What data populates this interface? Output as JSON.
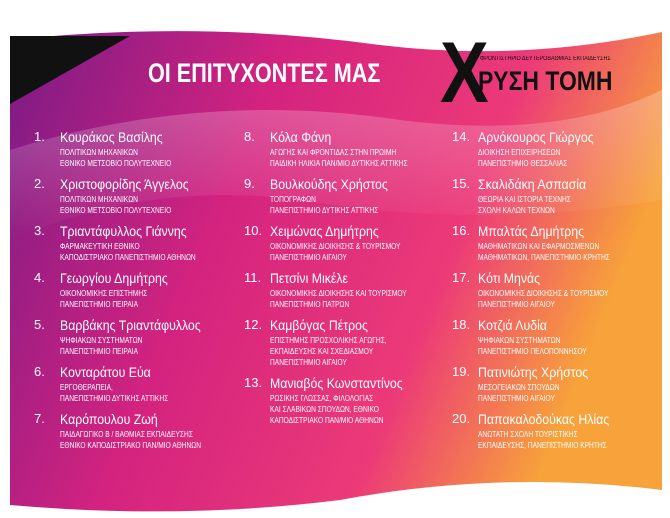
{
  "header": {
    "title": "ΟΙ ΕΠΙΤΥΧΟΝΤΕΣ ΜΑΣ",
    "logo_letter": "Χ",
    "logo_text": "ΡΥΣΗ ΤΟΜΗ",
    "logo_tagline": "ΦΡΟΝΤΙΣΤΗΡΙΟ ΔΕΥΤΕΡΟΒΑΘΜΙΑΣ ΕΚΠΑΙΔΕΥΣΗΣ"
  },
  "columns": [
    [
      {
        "number": "1.",
        "name": "Κουράκος Βασίλης",
        "lines": [
          "ΠΟΛΙΤΙΚΩΝ ΜΗΧΑΝΙΚΩΝ",
          "ΕΘΝΙΚΟ ΜΕΤΣΟΒΙΟ ΠΟΛΥΤΕΧΝΕΙΟ"
        ]
      },
      {
        "number": "2.",
        "name": "Χριστοφορίδης Άγγελος",
        "lines": [
          "ΠΟΛΙΤΙΚΩΝ ΜΗΧΑΝΙΚΩΝ",
          "ΕΘΝΙΚΟ ΜΕΤΣΟΒΙΟ ΠΟΛΥΤΕΧΝΕΙΟ"
        ]
      },
      {
        "number": "3.",
        "name": "Τριαντάφυλλος Γιάννης",
        "lines": [
          "ΦΑΡΜΑΚΕΥΤΙΚΗ ΕΘΝΙΚΟ",
          "ΚΑΠΟΔΙΣΤΡΙΑΚΟ ΠΑΝΕΠΙΣΤΗΜΙΟ ΑΘΗΝΩΝ"
        ]
      },
      {
        "number": "4.",
        "name": "Γεωργίου Δημήτρης",
        "lines": [
          "ΟΙΚΟΝΟΜΙΚΗΣ ΕΠΙΣΤΗΜΗΣ",
          "ΠΑΝΕΠΙΣΤΗΜΙΟ ΠΕΙΡΑΙΑ"
        ]
      },
      {
        "number": "5.",
        "name": "Βαρβάκης Τριαντάφυλλος",
        "lines": [
          "ΨΗΦΙΑΚΩΝ ΣΥΣΤΗΜΑΤΩΝ",
          "ΠΑΝΕΠΙΣΤΗΜΙΟ ΠΕΙΡΑΙΑ"
        ]
      },
      {
        "number": "6.",
        "name": "Κονταράτου Εύα",
        "lines": [
          "ΕΡΓΟΘΕΡΑΠΕΙΑ,",
          "ΠΑΝΕΠΙΣΤΗΜΙΟ ΔΥΤΙΚΗΣ ΑΤΤΙΚΗΣ"
        ]
      },
      {
        "number": "7.",
        "name": "Καρόπουλου Ζωή",
        "lines": [
          "ΠΑΙΔΑΓΩΓΙΚΟ Β / ΒΑΘΜΙΑΣ ΕΚΠΑΙΔΕΥΣΗΣ",
          "ΕΘΝΙΚΟ ΚΑΠΟΔΙΣΤΡΙΑΚΟ ΠΑΝ/ΜΙΟ ΑΘΗΝΩΝ"
        ]
      }
    ],
    [
      {
        "number": "8.",
        "name": "Κόλα Φάνη",
        "lines": [
          "ΑΓΩΓΗΣ ΚΑΙ ΦΡΟΝΤΙΔΑΣ ΣΤΗΝ ΠΡΩΙΜΗ",
          "ΠΑΙΔΙΚΗ ΗΛΙΚΙΑ ΠΑΝ/ΜΙΟ ΔΥΤΙΚΗΣ ΑΤΤΙΚΗΣ"
        ]
      },
      {
        "number": "9.",
        "name": "Βουλκούδης Χρήστος",
        "lines": [
          "ΤΟΠΟΓΡΑΦΩΝ",
          "ΠΑΝΕΠΙΣΤΗΜΙΟ ΔΥΤΙΚΗΣ ΑΤΤΙΚΗΣ"
        ]
      },
      {
        "number": "10.",
        "name": "Χειμώνας Δημήτρης",
        "lines": [
          "ΟΙΚΟΝΟΜΙΚΗΣ ΔΙΟΙΚΗΣΗΣ & ΤΟΥΡΙΣΜΟΥ",
          "ΠΑΝΕΠΙΣΤΗΜΙΟ ΑΙΓΑΙΟΥ"
        ]
      },
      {
        "number": "11.",
        "name": "Πετσίνι Μικέλε",
        "lines": [
          "ΟΙΚΟΝΟΜΙΚΗΣ ΔΙΟΙΚΗΣΗΣ ΚΑΙ ΤΟΥΡΙΣΜΟΥ",
          "ΠΑΝΕΠΙΣΤΗΜΙΟ ΠΑΤΡΩΝ"
        ]
      },
      {
        "number": "12.",
        "name": "Καμβόγας Πέτρος",
        "lines": [
          "ΕΠΙΣΤΗΜΗΣ ΠΡΟΣΧΟΛΙΚΗΣ ΑΓΩΓΗΣ,",
          "ΕΚΠΑΙΔΕΥΣΗΣ ΚΑΙ ΣΧΕΔΙΑΣΜΟΥ",
          "ΠΑΝΕΠΙΣΤΗΜΙΟ ΑΙΓΑΙΟΥ"
        ]
      },
      {
        "number": "13.",
        "name": "Μανιαβός Κωνσταντίνος",
        "lines": [
          "ΡΩΣΙΚΗΣ ΓΛΩΣΣΑΣ, ΦΙΛΟΛΟΓΙΑΣ",
          "ΚΑΙ ΣΛΑΒΙΚΩΝ ΣΠΟΥΔΩΝ, ΕΘΝΙΚΟ",
          "ΚΑΠΟΔΙΣΤΡΙΑΚΟ ΠΑΝ/ΜΙΟ ΑΘΗΝΩΝ"
        ]
      }
    ],
    [
      {
        "number": "14.",
        "name": "Αρνόκουρος Γιώργος",
        "lines": [
          "ΔΙΟΙΚΗΣΗ ΕΠΙΧΕΙΡΗΣΕΩΝ",
          "ΠΑΝΕΠΙΣΤΗΜΙΟ ΘΕΣΣΑΛΙΑΣ"
        ]
      },
      {
        "number": "15.",
        "name": "Σκαλιδάκη Ασπασία",
        "lines": [
          "ΘΕΩΡΙΑ ΚΑΙ ΙΣΤΟΡΙΑ ΤΕΧΝΗΣ",
          "ΣΧΟΛΗ ΚΑΛΩΝ ΤΕΧΝΩΝ"
        ]
      },
      {
        "number": "16.",
        "name": "Μπαλτάς Δημήτρης",
        "lines": [
          "ΜΑΘΗΜΑΤΙΚΩΝ ΚΑΙ ΕΦΑΡΜΟΣΜΕΝΩΝ",
          "ΜΑΘΗΜΑΤΙΚΩΝ, ΠΑΝΕΠΙΣΤΗΜΙΟ ΚΡΗΤΗΣ"
        ]
      },
      {
        "number": "17.",
        "name": "Κότι Μηνάς",
        "lines": [
          "ΟΙΚΟΝΟΜΙΚΗΣ ΔΙΟΙΚΗΣΗΣ & ΤΟΥΡΙΣΜΟΥ",
          "ΠΑΝΕΠΙΣΤΗΜΙΟ ΑΙΓΑΙΟΥ"
        ]
      },
      {
        "number": "18.",
        "name": "Κοτζιά Λυδία",
        "lines": [
          "ΨΗΦΙΑΚΩΝ ΣΥΣΤΗΜΑΤΩΝ",
          "ΠΑΝΕΠΙΣΤΗΜΙΟ ΠΕΛΟΠΟΝΝΗΣΟΥ"
        ]
      },
      {
        "number": "19.",
        "name": "Πατινιώτης Χρήστος",
        "lines": [
          "ΜΕΣΟΓΕΙΑΚΩΝ ΣΠΟΥΔΩΝ",
          "ΠΑΝΕΠΙΣΤΗΜΙΟ ΑΙΓΑΙΟΥ"
        ]
      },
      {
        "number": "20.",
        "name": "Παπακαλοδούκας Ηλίας",
        "lines": [
          "ΑΝΩΤΑΤΗ ΣΧΟΛΗ ΤΟΥΡΙΣΤΙΚΗΣ",
          "ΕΚΠΑΙΔΕΥΣΗΣ, ΠΑΝΕΠΙΣΤΗΜΙΟ ΚΡΗΤΗΣ"
        ]
      }
    ]
  ]
}
